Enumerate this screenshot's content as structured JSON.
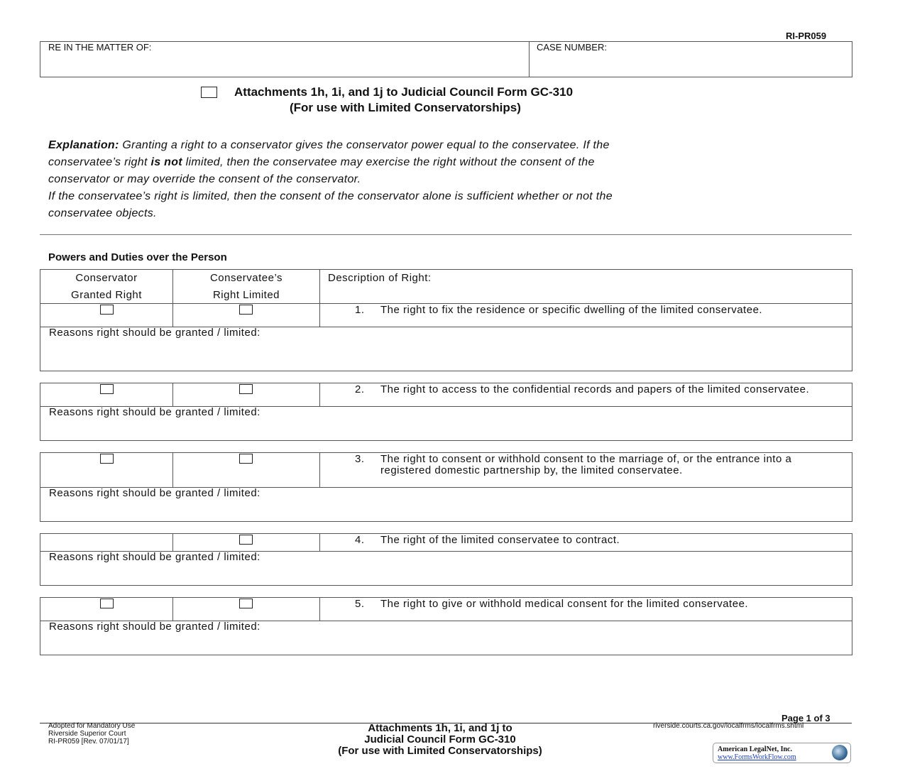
{
  "form_id": "RI-PR059",
  "header": {
    "matter_label": "RE IN THE MATTER OF:",
    "case_label": "CASE NUMBER:"
  },
  "title": {
    "line1": "Attachments 1h, 1i, and 1j to Judicial Council Form GC-310",
    "line2": "(For use with Limited Conservatorships)"
  },
  "explanation": {
    "label": "Explanation:",
    "line1": " Granting a right to a conservator gives the conservator power equal to the conservatee. If the",
    "line2a": "conservatee’s right ",
    "line2b": "is not",
    "line2c": " limited, then the conservatee may exercise the right without the consent of the",
    "line3": "conservator or may override the consent of the conservator.",
    "line4": "If the conservatee’s right is limited, then the consent of the conservator alone is sufficient whether or not the",
    "line5": "conservatee objects."
  },
  "section_title": "Powers and Duties over the Person",
  "table_headers": {
    "col1a": "Conservator",
    "col1b": "Granted Right",
    "col2a": "Conservatee’s",
    "col2b": "Right Limited",
    "col3": "Description of Right:"
  },
  "reasons_label": "Reasons right should be granted / limited:",
  "rights": [
    {
      "num": "1.",
      "text": "The right to fix the residence or specific dwelling of the limited conservatee.",
      "granted_checkbox": true
    },
    {
      "num": "2.",
      "text": "The right to access to the confidential records and papers of the limited conservatee.",
      "granted_checkbox": true
    },
    {
      "num": "3.",
      "text": "The right to consent or withhold consent to the marriage of, or the entrance into a registered domestic partnership by, the limited conservatee.",
      "granted_checkbox": true
    },
    {
      "num": "4.",
      "text": "The right of the limited conservatee to contract.",
      "granted_checkbox": false
    },
    {
      "num": "5.",
      "text": "The right to give or withhold medical consent for the limited conservatee.",
      "granted_checkbox": true
    }
  ],
  "footer": {
    "left1": "Adopted for Mandatory Use",
    "left2": "Riverside Superior Court",
    "left3": "RI-PR059 [Rev. 07/01/17]",
    "center1": "Attachments 1h, 1i, and 1j to",
    "center2": "Judicial Council Form GC-310",
    "center3": "(For use with Limited Conservatorships)",
    "page": "Page 1 of 3",
    "url": "riverside.courts.ca.gov/localfrms/localfrms.shtml",
    "logo_name": "American LegalNet, Inc.",
    "logo_url": "www.FormsWorkFlow.com"
  }
}
